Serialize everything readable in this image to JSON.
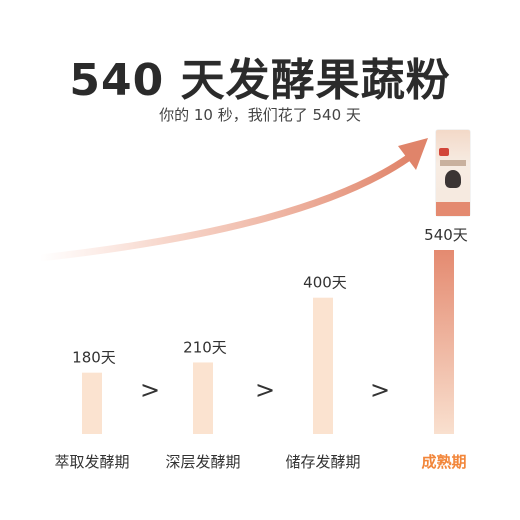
{
  "header": {
    "title": "540 天发酵果蔬粉",
    "subtitle": "你的 10 秒，我们花了 540 天"
  },
  "colors": {
    "bar_fill": "#fbe3d0",
    "bar_fill_last": "#e99a7f",
    "highlight_label": "#f2863a",
    "separator": "#333333"
  },
  "separator_glyph": ">",
  "chart_data": {
    "type": "bar",
    "categories": [
      "萃取发酵期",
      "深层发酵期",
      "储存发酵期",
      "成熟期"
    ],
    "values": [
      180,
      210,
      400,
      540
    ],
    "value_labels": [
      "180天",
      "210天",
      "400天",
      "540天"
    ],
    "highlight_category": "成熟期",
    "grid": false,
    "legend": "none"
  }
}
